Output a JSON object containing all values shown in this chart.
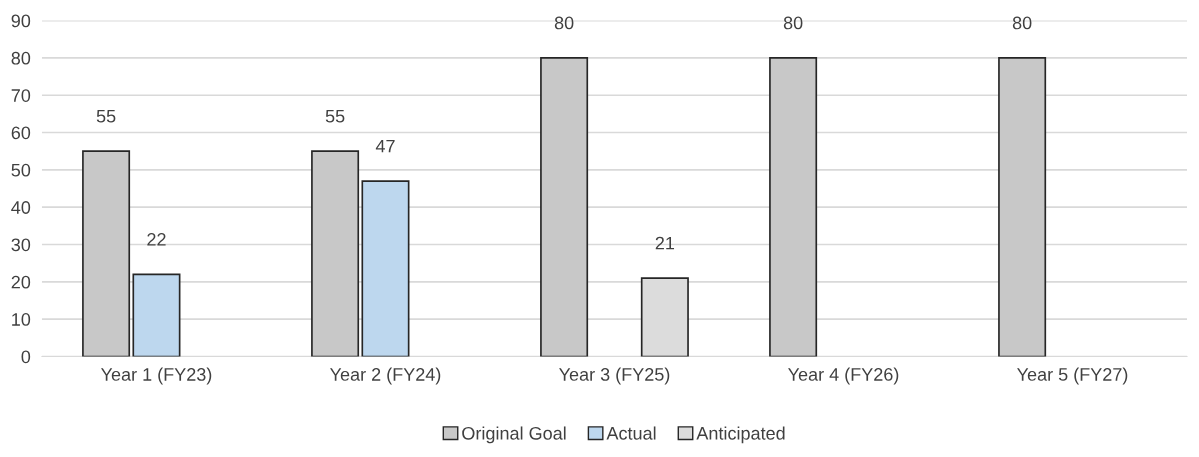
{
  "chart_data": {
    "type": "bar",
    "categories": [
      "Year 1 (FY23)",
      "Year 2 (FY24)",
      "Year 3 (FY25)",
      "Year 4 (FY26)",
      "Year 5 (FY27)"
    ],
    "series": [
      {
        "name": "Original Goal",
        "color": "#c8c8c8",
        "values": [
          55,
          55,
          80,
          80,
          80
        ]
      },
      {
        "name": "Actual",
        "color": "#bdd7ee",
        "values": [
          22,
          47,
          null,
          null,
          null
        ]
      },
      {
        "name": "Anticipated",
        "color": "#dcdcdc",
        "values": [
          null,
          null,
          21,
          null,
          null
        ]
      }
    ],
    "ylim": [
      0,
      90
    ],
    "yticks": [
      0,
      10,
      20,
      30,
      40,
      50,
      60,
      70,
      80,
      90
    ],
    "grid": "y",
    "legend": "bottom",
    "data_labels": true
  }
}
